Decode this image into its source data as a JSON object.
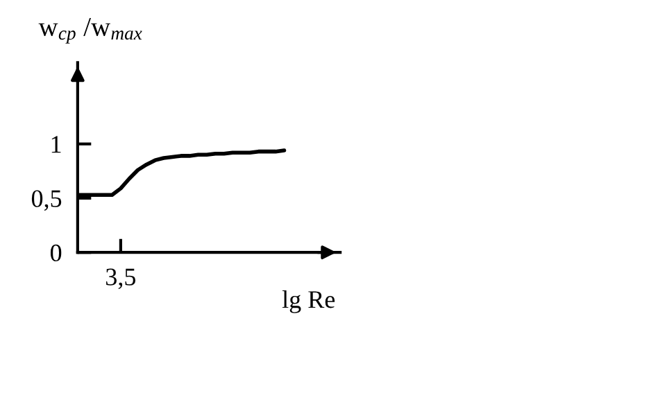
{
  "chart_data": {
    "type": "line",
    "ylabel": "w$_{ср}$ /w$_{max}$",
    "xlabel": "lg Re",
    "categories": [
      null,
      null,
      null,
      null,
      null,
      "3,5",
      null,
      null,
      null,
      null,
      null,
      null,
      null,
      null,
      null,
      null,
      null,
      null,
      null,
      null,
      null,
      null,
      null,
      null,
      null
    ],
    "series": [
      {
        "color": "#000000",
        "values": [
          0.53,
          0.53,
          0.53,
          0.53,
          0.53,
          0.59,
          0.68,
          0.76,
          0.81,
          0.85,
          0.87,
          0.88,
          0.89,
          0.89,
          0.9,
          0.9,
          0.91,
          0.91,
          0.92,
          0.92,
          0.92,
          0.93,
          0.93,
          0.93,
          0.94
        ]
      }
    ],
    "ylim": [
      0,
      1.75
    ],
    "yticks": [
      0,
      {
        "value": 0.5,
        "label": "0,5"
      },
      1
    ],
    "marker": "none",
    "line_style": "solid",
    "grid": false,
    "legend": false
  }
}
